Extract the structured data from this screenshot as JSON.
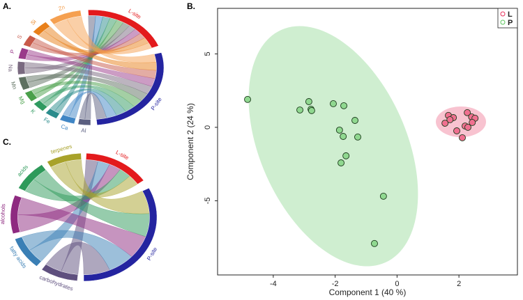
{
  "chart_data": [
    {
      "type": "chord",
      "panel": "A.",
      "labels": [
        "L-site",
        "P-site",
        "Al",
        "Ca",
        "Fe",
        "K",
        "Mg",
        "Mn",
        "Na",
        "P",
        "S",
        "Si",
        "Zn"
      ],
      "colors": [
        "#e31a1c",
        "#2424a0",
        "#5b5f80",
        "#3f86c5",
        "#2a8c8c",
        "#2f9a60",
        "#4aa04a",
        "#5e7060",
        "#7a6a80",
        "#9a3a8a",
        "#c85a4a",
        "#e8801a",
        "#f5a050"
      ]
    },
    {
      "type": "scatter",
      "panel": "B.",
      "xlabel": "Component 1 (40 %)",
      "ylabel": "Component 2 (24 %)",
      "xlim": [
        -5.8,
        3.89
      ],
      "ylim": [
        -10.05,
        8.1
      ],
      "xticks": [
        -4,
        -2,
        0,
        2
      ],
      "yticks": [
        -5,
        0,
        5
      ],
      "legend": "upper right",
      "series": [
        {
          "name": "L",
          "color": "#e8305a",
          "fill": "#f07090",
          "x": [
            1.66,
            1.82,
            1.71,
            1.55,
            2.27,
            2.41,
            2.52,
            2.43,
            2.2,
            2.29,
            1.93,
            2.11
          ],
          "values": [
            0.81,
            0.66,
            0.52,
            0.28,
            1.0,
            0.71,
            0.62,
            0.33,
            0.09,
            0.0,
            -0.24,
            -0.71
          ]
        },
        {
          "name": "P",
          "color": "#5cc45c",
          "fill": "#90d890",
          "x": [
            -4.83,
            -2.85,
            -3.14,
            -2.78,
            -2.76,
            -2.06,
            -1.72,
            -1.36,
            -1.86,
            -1.74,
            -1.27,
            -1.65,
            -1.81,
            -0.44,
            -0.73
          ],
          "values": [
            1.9,
            1.75,
            1.18,
            1.23,
            1.14,
            1.61,
            1.47,
            0.47,
            -0.19,
            -0.62,
            -0.66,
            -1.94,
            -2.42,
            -4.69,
            -7.91
          ]
        }
      ]
    },
    {
      "type": "chord",
      "panel": "C.",
      "labels": [
        "L-site",
        "P-site",
        "carbohydrates",
        "fatty acids",
        "alcohols",
        "acids",
        "terpenes"
      ],
      "colors": [
        "#e31a1c",
        "#2424a0",
        "#5e4f7e",
        "#3a7fb5",
        "#8e2a80",
        "#2e9a5a",
        "#a8a22a"
      ]
    }
  ]
}
